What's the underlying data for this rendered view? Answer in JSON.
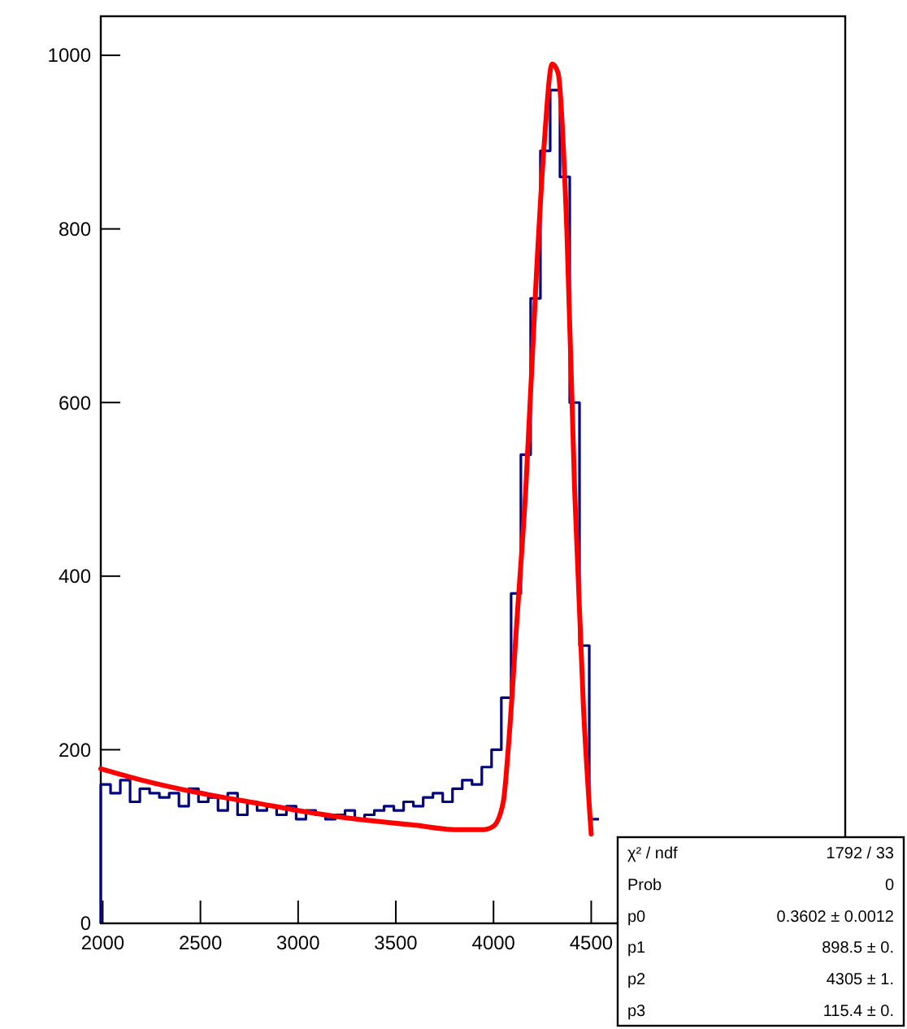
{
  "chart_data": {
    "type": "histogram",
    "series": [
      {
        "color": "#000080",
        "bins": [
          1990,
          2040,
          2090,
          2140,
          2190,
          2240,
          2290,
          2340,
          2390,
          2440,
          2490,
          2540,
          2590,
          2640,
          2690,
          2740,
          2790,
          2840,
          2890,
          2940,
          2990,
          3040,
          3090,
          3140,
          3190,
          3240,
          3290,
          3340,
          3390,
          3440,
          3490,
          3540,
          3590,
          3640,
          3690,
          3740,
          3790,
          3840,
          3890,
          3940,
          3990,
          4040,
          4090,
          4140,
          4190,
          4240,
          4290,
          4340,
          4390,
          4440,
          4490,
          4540
        ],
        "values": [
          160,
          150,
          165,
          140,
          155,
          150,
          145,
          150,
          135,
          155,
          140,
          145,
          130,
          150,
          125,
          140,
          130,
          135,
          125,
          135,
          120,
          130,
          125,
          120,
          125,
          130,
          120,
          125,
          130,
          135,
          130,
          140,
          135,
          145,
          150,
          140,
          155,
          165,
          160,
          180,
          200,
          260,
          380,
          540,
          720,
          890,
          960,
          860,
          600,
          320,
          120
        ]
      },
      {
        "type": "line",
        "color": "#ff0000",
        "x": [
          1990,
          2200,
          2500,
          2800,
          3000,
          3300,
          3600,
          3800,
          3950,
          4000,
          4050,
          4075,
          4120,
          4165,
          4220,
          4260,
          4300,
          4330,
          4375,
          4415,
          4460,
          4500
        ],
        "values": [
          178,
          165,
          150,
          138,
          130,
          120,
          113,
          108,
          108,
          112,
          140,
          200,
          350,
          500,
          750,
          900,
          990,
          980,
          800,
          500,
          250,
          103
        ]
      }
    ],
    "xlim": [
      1990,
      5800
    ],
    "ylim": [
      0,
      1045
    ],
    "xticks": [
      2000,
      2500,
      3000,
      3500,
      4000,
      4500
    ],
    "yticks": [
      0,
      200,
      400,
      600,
      800,
      1000
    ],
    "annotations": [
      "χ² / ndf",
      "1792 / 33",
      "Prob",
      "0",
      "p0",
      "0.3602 ± 0.0012",
      "p1",
      "898.5 ± 0.",
      "p2",
      "4305 ± 1.",
      "p3",
      "115.4 ± 0."
    ]
  }
}
